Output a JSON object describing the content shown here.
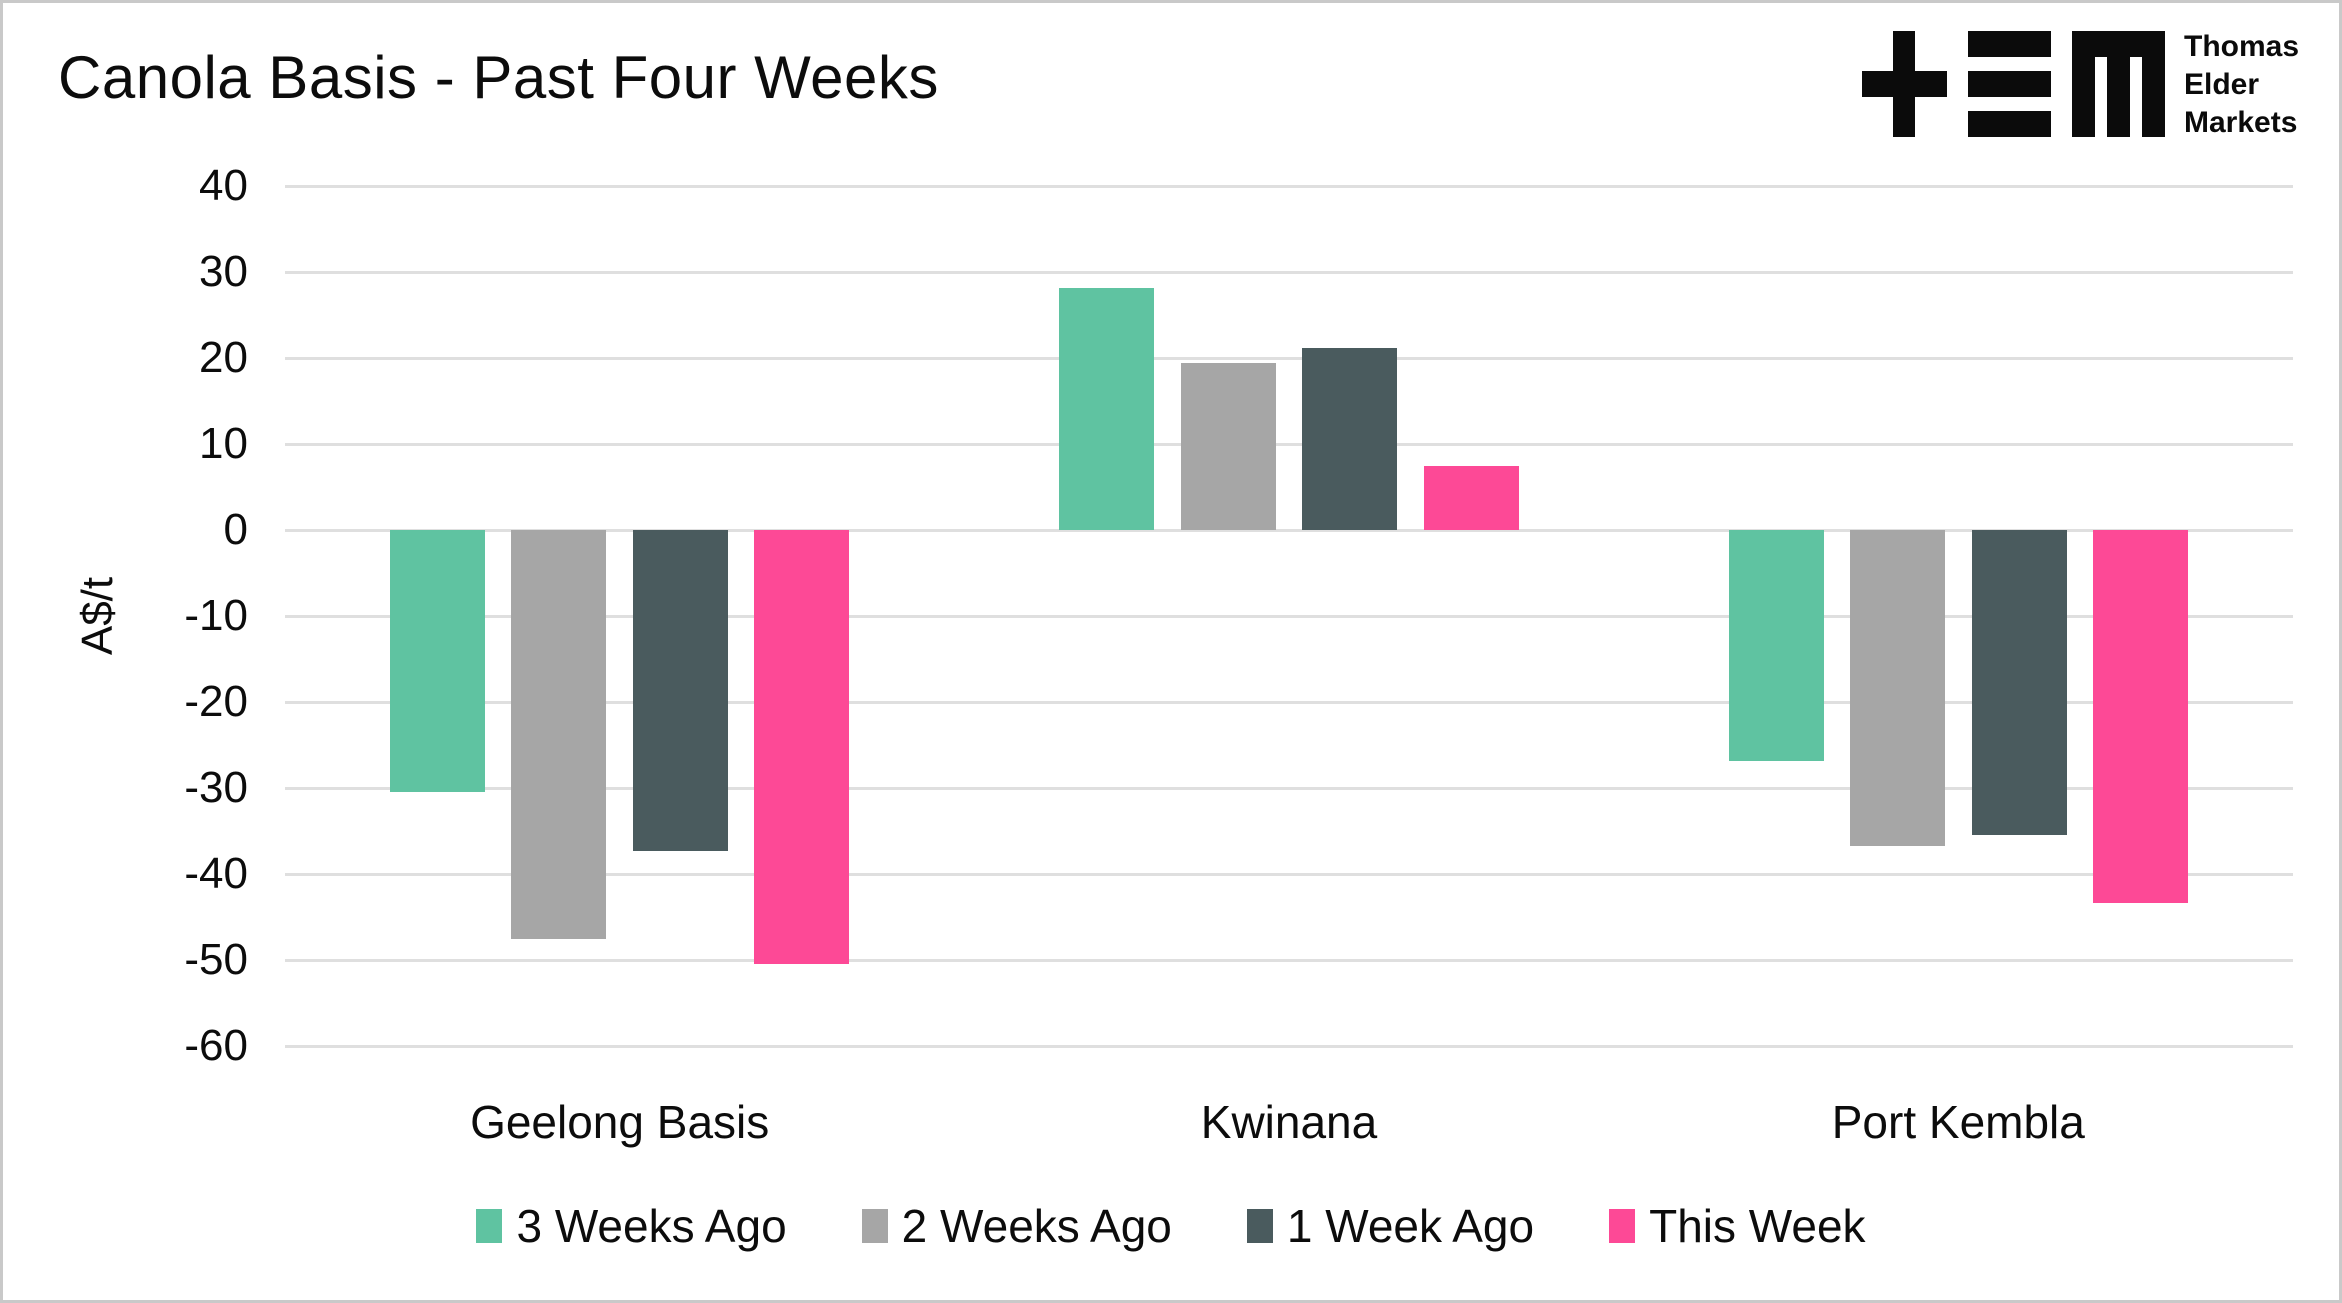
{
  "title": "Canola Basis - Past Four Weeks",
  "logo": {
    "line1": "Thomas",
    "line2": "Elder",
    "line3": "Markets"
  },
  "chart_data": {
    "type": "bar",
    "title": "Canola Basis - Past Four Weeks",
    "xlabel": "",
    "ylabel": "A$/t",
    "ylim": [
      -60,
      40
    ],
    "ytick_step": 10,
    "grid": true,
    "legend_position": "bottom",
    "categories": [
      "Geelong Basis",
      "Kwinana",
      "Port Kembla"
    ],
    "series": [
      {
        "name": "3 Weeks Ago",
        "color": "#5FC3A1",
        "values": [
          -30.5,
          28.1,
          -26.8
        ]
      },
      {
        "name": "2 Weeks Ago",
        "color": "#A6A6A6",
        "values": [
          -47.6,
          19.4,
          -36.7
        ]
      },
      {
        "name": "1 Week Ago",
        "color": "#4A5B5E",
        "values": [
          -37.3,
          21.2,
          -35.5
        ]
      },
      {
        "name": "This Week",
        "color": "#FD4996",
        "values": [
          -50.5,
          7.4,
          -43.4
        ]
      }
    ],
    "grid_color": "#DFDFDF",
    "text_color": "#0C0C0C",
    "logo_color": "#0B0B0B"
  }
}
